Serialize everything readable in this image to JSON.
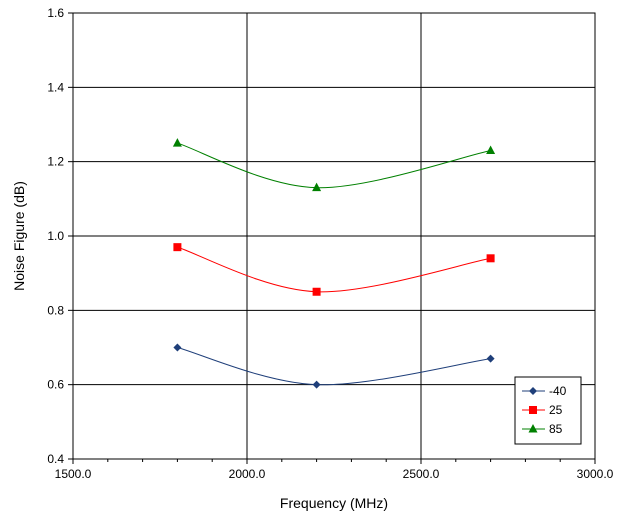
{
  "chart_data": {
    "type": "line",
    "title": "",
    "xlabel": "Frequency (MHz)",
    "ylabel": "Noise Figure (dB)",
    "xlim": [
      1500,
      3000
    ],
    "ylim": [
      0.4,
      1.6
    ],
    "x_ticks": [
      "1500.0",
      "2000.0",
      "2500.0",
      "3000.0"
    ],
    "y_ticks": [
      "0.4",
      "0.6",
      "0.8",
      "1.0",
      "1.2",
      "1.4",
      "1.6"
    ],
    "grid": true,
    "smooth": true,
    "legend_position": "bottom-right",
    "series": [
      {
        "name": "-40",
        "color": "#1f3f7a",
        "marker": "diamond",
        "x": [
          1800,
          2200,
          2700
        ],
        "y": [
          0.7,
          0.6,
          0.67
        ]
      },
      {
        "name": "25",
        "color": "#ff0000",
        "marker": "square",
        "x": [
          1800,
          2200,
          2700
        ],
        "y": [
          0.97,
          0.85,
          0.94
        ]
      },
      {
        "name": "85",
        "color": "#008000",
        "marker": "triangle",
        "x": [
          1800,
          2200,
          2700
        ],
        "y": [
          1.25,
          1.13,
          1.23
        ]
      }
    ]
  }
}
